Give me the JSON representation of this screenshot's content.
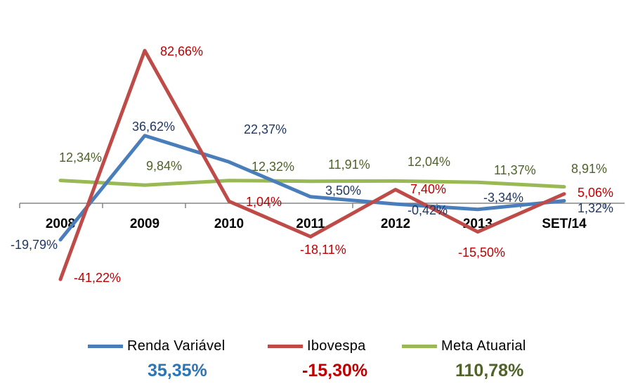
{
  "chart_data": {
    "type": "line",
    "categories": [
      "2008",
      "2009",
      "2010",
      "2011",
      "2012",
      "2013",
      "SET/14"
    ],
    "series": [
      {
        "name": "Renda Variável",
        "color": "#4a7ebb",
        "values": [
          -19.79,
          36.62,
          22.37,
          3.5,
          -0.42,
          -3.34,
          1.32
        ],
        "labels": [
          "-19,79%",
          "36,62%",
          "22,37%",
          "3,50%",
          "-0,42%",
          "-3,34%",
          "1,32%"
        ],
        "label_color": "#1f3864"
      },
      {
        "name": "Ibovespa",
        "color": "#be4b48",
        "values": [
          -41.22,
          82.66,
          1.04,
          -18.11,
          7.4,
          -15.5,
          5.06
        ],
        "labels": [
          "-41,22%",
          "82,66%",
          "1,04%",
          "-18,11%",
          "7,40%",
          "-15,50%",
          "5,06%"
        ],
        "label_color": "#c00000"
      },
      {
        "name": "Meta Atuarial",
        "color": "#98b954",
        "values": [
          12.34,
          9.84,
          12.32,
          11.91,
          12.04,
          11.37,
          8.91
        ],
        "labels": [
          "12,34%",
          "9,84%",
          "12,32%",
          "11,91%",
          "12,04%",
          "11,37%",
          "8,91%"
        ],
        "label_color": "#4f6228"
      }
    ],
    "ylim": [
      -60,
      100
    ],
    "grid": false,
    "legend_position": "bottom"
  },
  "totals": [
    {
      "value": "35,35%",
      "color": "#2e75b6"
    },
    {
      "value": "-15,30%",
      "color": "#c00000"
    },
    {
      "value": "110,78%",
      "color": "#4f6228"
    }
  ]
}
